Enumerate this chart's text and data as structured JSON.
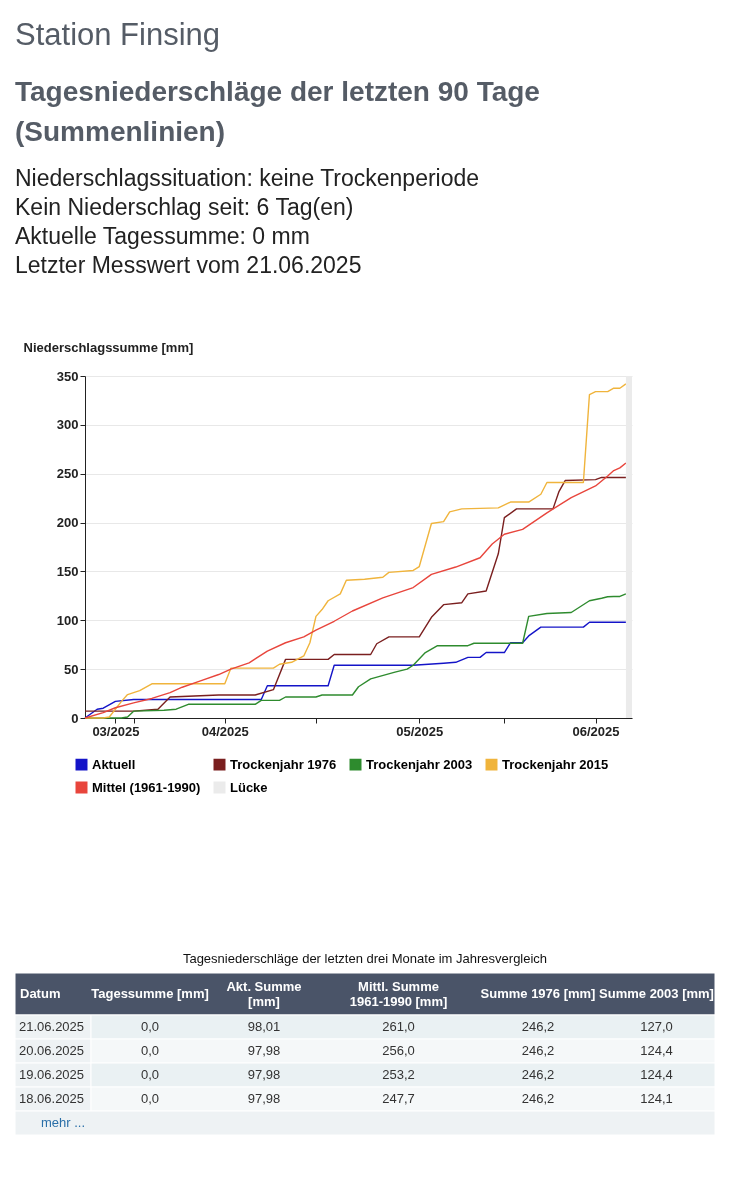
{
  "chart_data": {
    "type": "line",
    "title": "Station Finsing",
    "subtitle": "Tagesniederschläge der letzten 90 Tage (Summenlinien)",
    "ylabel": "Niederschlagssumme [mm]",
    "xlim": [
      "2025-03-24",
      "2025-06-22"
    ],
    "xticks": [
      {
        "value": "2025-03-29",
        "label": "03/2025"
      },
      {
        "value": "2025-04-01",
        "label": null
      },
      {
        "value": "2025-04-16",
        "label": "04/2025"
      },
      {
        "value": "2025-05-01",
        "label": null
      },
      {
        "value": "2025-05-18",
        "label": "05/2025"
      },
      {
        "value": "2025-06-01",
        "label": null
      },
      {
        "value": "2025-06-16",
        "label": "06/2025"
      }
    ],
    "ylim": [
      0,
      350
    ],
    "yticks": [
      0,
      50,
      100,
      150,
      200,
      250,
      300,
      350
    ],
    "grid": "y",
    "legend": "bottom",
    "line_style": "solid",
    "marker": "none",
    "bands": [
      {
        "axis": "x",
        "from": "2025-06-21",
        "to": "2025-06-22",
        "label": "Lücke",
        "color": "#ebebeb"
      }
    ],
    "series": [
      {
        "name": "Aktuell",
        "color": "#1414c8",
        "x": [
          "2025-03-24",
          "2025-03-26",
          "2025-03-27",
          "2025-03-29",
          "2025-04-01",
          "2025-04-22",
          "2025-04-23",
          "2025-05-03",
          "2025-05-04",
          "2025-05-17",
          "2025-05-22",
          "2025-05-24",
          "2025-05-26",
          "2025-05-28",
          "2025-05-29",
          "2025-06-01",
          "2025-06-02",
          "2025-06-04",
          "2025-06-05",
          "2025-06-07",
          "2025-06-14",
          "2025-06-15",
          "2025-06-18",
          "2025-06-19",
          "2025-06-20",
          "2025-06-21"
        ],
        "values": [
          0,
          9,
          10,
          17,
          19,
          19,
          33,
          33,
          54,
          54,
          56,
          57,
          62,
          62,
          67,
          67,
          77,
          77,
          84,
          93,
          93,
          97.98,
          97.98,
          97.98,
          97.98,
          98.01
        ]
      },
      {
        "name": "Trockenjahr 1976",
        "color": "#7a1f1f",
        "x": [
          "2025-03-24",
          "2025-04-01",
          "2025-04-05",
          "2025-04-07",
          "2025-04-15",
          "2025-04-21",
          "2025-04-24",
          "2025-04-26",
          "2025-05-03",
          "2025-05-04",
          "2025-05-10",
          "2025-05-11",
          "2025-05-13",
          "2025-05-18",
          "2025-05-20",
          "2025-05-22",
          "2025-05-25",
          "2025-05-26",
          "2025-05-29",
          "2025-05-31",
          "2025-06-01",
          "2025-06-03",
          "2025-06-09",
          "2025-06-10",
          "2025-06-11",
          "2025-06-16",
          "2025-06-17",
          "2025-06-18",
          "2025-06-19",
          "2025-06-20",
          "2025-06-21"
        ],
        "values": [
          7,
          7,
          9,
          21.5,
          23.5,
          23.5,
          29,
          60,
          60,
          65,
          65,
          76,
          83,
          83,
          103,
          116,
          118,
          127,
          130,
          168,
          205,
          214,
          214,
          232,
          243,
          244,
          246.2,
          246.2,
          246.2,
          246.2,
          246.2
        ]
      },
      {
        "name": "Trockenjahr 2003",
        "color": "#2e8b2e",
        "x": [
          "2025-03-24",
          "2025-03-30",
          "2025-03-31",
          "2025-04-01",
          "2025-04-06",
          "2025-04-08",
          "2025-04-10",
          "2025-04-21",
          "2025-04-22",
          "2025-04-25",
          "2025-04-26",
          "2025-05-01",
          "2025-05-02",
          "2025-05-07",
          "2025-05-08",
          "2025-05-10",
          "2025-05-14",
          "2025-05-16",
          "2025-05-17",
          "2025-05-19",
          "2025-05-21",
          "2025-05-26",
          "2025-05-27",
          "2025-06-04",
          "2025-06-05",
          "2025-06-08",
          "2025-06-12",
          "2025-06-15",
          "2025-06-17",
          "2025-06-18",
          "2025-06-19",
          "2025-06-20",
          "2025-06-21"
        ],
        "values": [
          0,
          0,
          1,
          7,
          8,
          9,
          14,
          14,
          18,
          18,
          21.5,
          21.5,
          23.5,
          23.5,
          32,
          40,
          47,
          50,
          54,
          67,
          74,
          74,
          76.5,
          76.5,
          104,
          107,
          108,
          120,
          122.5,
          124.1,
          124.4,
          124.4,
          127.0
        ]
      },
      {
        "name": "Trockenjahr 2015",
        "color": "#f0b43c",
        "x": [
          "2025-03-24",
          "2025-03-27",
          "2025-03-28",
          "2025-03-30",
          "2025-03-31",
          "2025-04-02",
          "2025-04-04",
          "2025-04-16",
          "2025-04-17",
          "2025-04-24",
          "2025-04-25",
          "2025-04-27",
          "2025-04-29",
          "2025-04-30",
          "2025-05-01",
          "2025-05-02",
          "2025-05-03",
          "2025-05-05",
          "2025-05-06",
          "2025-05-09",
          "2025-05-12",
          "2025-05-13",
          "2025-05-17",
          "2025-05-18",
          "2025-05-20",
          "2025-05-22",
          "2025-05-23",
          "2025-05-25",
          "2025-05-31",
          "2025-06-02",
          "2025-06-05",
          "2025-06-07",
          "2025-06-08",
          "2025-06-14",
          "2025-06-15",
          "2025-06-16",
          "2025-06-18",
          "2025-06-19",
          "2025-06-20",
          "2025-06-21"
        ],
        "values": [
          0,
          0,
          1,
          17,
          24,
          28,
          35,
          35,
          51,
          51,
          55,
          57,
          63.5,
          77,
          104,
          111,
          120,
          127,
          141,
          142,
          144,
          149,
          151,
          155,
          199,
          201,
          211,
          214,
          215,
          221,
          221,
          229,
          241,
          241,
          331,
          334,
          334,
          337.5,
          337.5,
          342
        ]
      },
      {
        "name": "Mittel (1961-1990)",
        "color": "#e8453c",
        "x": [
          "2025-03-24",
          "2025-03-27",
          "2025-03-29",
          "2025-04-01",
          "2025-04-04",
          "2025-04-07",
          "2025-04-09",
          "2025-04-12",
          "2025-04-15",
          "2025-04-17",
          "2025-04-20",
          "2025-04-23",
          "2025-04-26",
          "2025-04-29",
          "2025-05-01",
          "2025-05-04",
          "2025-05-07",
          "2025-05-12",
          "2025-05-17",
          "2025-05-20",
          "2025-05-24",
          "2025-05-28",
          "2025-05-30",
          "2025-06-01",
          "2025-06-04",
          "2025-06-08",
          "2025-06-12",
          "2025-06-16",
          "2025-06-18",
          "2025-06-19",
          "2025-06-20",
          "2025-06-21"
        ],
        "values": [
          0,
          5.5,
          10.5,
          15.5,
          20,
          26,
          31.5,
          38,
          44.5,
          50,
          56.5,
          68.5,
          77,
          83,
          90,
          99,
          109.5,
          123,
          133.5,
          147,
          154.5,
          164,
          178,
          188,
          193,
          210,
          225.5,
          237.5,
          247.7,
          253.2,
          256.0,
          261.0
        ]
      }
    ],
    "annotations": [
      "Niederschlagssituation: keine Trockenperiode",
      "Kein Niederschlag seit: 6 Tag(en)",
      "Aktuelle Tagessumme: 0 mm",
      "Letzter Messwert vom 21.06.2025",
      "Tagesniederschläge der letzten drei Monate im Jahresvergleich",
      "Datum",
      "Tagessumme [mm]",
      "Akt. Summe [mm]",
      "Mittl. Summe 1961-1990 [mm]",
      "Summe 1976 [mm]",
      "Summe 2003 [mm]",
      "21.06.2025",
      "0,0",
      "98,01",
      "261,0",
      "246,2",
      "127,0",
      "20.06.2025",
      "0,0",
      "97,98",
      "256,0",
      "246,2",
      "124,4",
      "19.06.2025",
      "0,0",
      "97,98",
      "253,2",
      "246,2",
      "124,4",
      "18.06.2025",
      "0,0",
      "97,98",
      "247,7",
      "246,2",
      "124,1",
      "mehr ..."
    ]
  }
}
